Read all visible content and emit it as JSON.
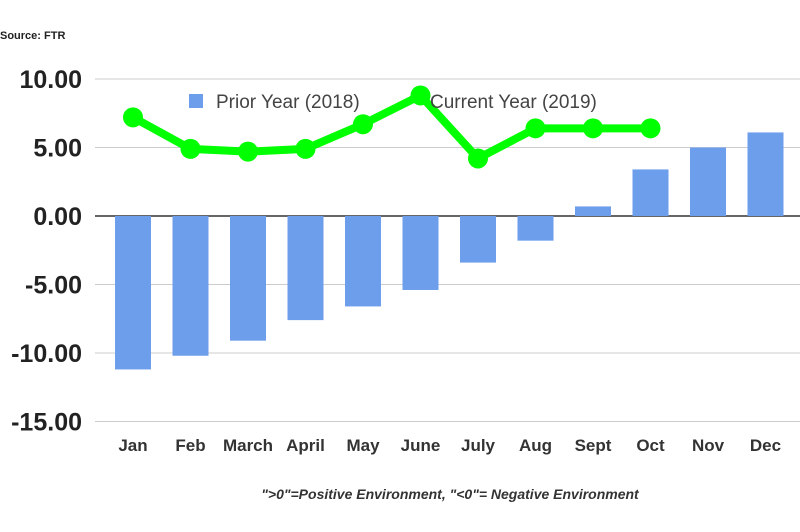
{
  "chart_data": {
    "type": "bar+line",
    "source": "Source: FTR",
    "footnote": "\">0\"=Positive Environment, \"<0\"= Negative Environment",
    "categories": [
      "Jan",
      "Feb",
      "March",
      "April",
      "May",
      "June",
      "July",
      "Aug",
      "Sept",
      "Oct",
      "Nov",
      "Dec"
    ],
    "ylim": [
      -15,
      10
    ],
    "yticks": [
      "10.00",
      "5.00",
      "0.00",
      "-5.00",
      "-10.00",
      "-15.00"
    ],
    "ytick_values": [
      10,
      5,
      0,
      -5,
      -10,
      -15
    ],
    "grid": true,
    "legend_position": "top",
    "series": [
      {
        "name": "Prior Year (2018)",
        "type": "bar",
        "color": "#6d9eeb",
        "values": [
          -11.2,
          -10.2,
          -9.1,
          -7.6,
          -6.6,
          -5.4,
          -3.4,
          -1.8,
          0.7,
          3.4,
          5.0,
          6.1
        ]
      },
      {
        "name": "Current Year (2019)",
        "type": "line",
        "color": "#00ff00",
        "values": [
          7.2,
          4.9,
          4.7,
          4.9,
          6.7,
          8.8,
          4.2,
          6.4,
          6.4,
          6.4,
          null,
          null
        ]
      }
    ]
  }
}
